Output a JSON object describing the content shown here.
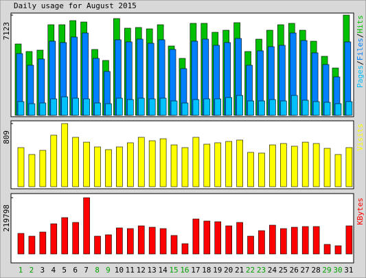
{
  "title": "Daily usage for August 2015",
  "legend_separator": "/",
  "chart_data": [
    {
      "type": "bar",
      "series": [
        {
          "name": "Hits",
          "color": "#00c000",
          "values": [
            5074,
            4537,
            4635,
            6440,
            6440,
            6733,
            6635,
            4684,
            3903,
            6879,
            6196,
            6245,
            6147,
            6440,
            4928,
            4049,
            6538,
            6538,
            5903,
            6050,
            6586,
            4537,
            5415,
            6050,
            6440,
            6538,
            6050,
            5269,
            4196,
            3366,
            7123
          ]
        },
        {
          "name": "Files",
          "color": "#0080ff",
          "values": [
            4391,
            3562,
            4001,
            5269,
            5172,
            5562,
            5854,
            4049,
            3122,
            5367,
            5220,
            5415,
            5123,
            5367,
            4684,
            3318,
            5269,
            5415,
            4977,
            5172,
            5464,
            3562,
            4586,
            4879,
            4977,
            5854,
            5318,
            4440,
            3610,
            2732,
            5220
          ]
        },
        {
          "name": "Pages",
          "color": "#00c0ff",
          "values": [
            976,
            829,
            878,
            1171,
            1317,
            1220,
            1171,
            878,
            829,
            1220,
            1122,
            1220,
            1171,
            1220,
            1025,
            878,
            1122,
            1171,
            1171,
            1268,
            1415,
            1025,
            1025,
            1122,
            1025,
            1415,
            1073,
            976,
            927,
            829,
            976
          ]
        }
      ],
      "ylim": [
        0,
        7123
      ],
      "yticks": [
        7123
      ]
    },
    {
      "type": "bar",
      "series": [
        {
          "name": "Visits",
          "color": "#ffff00",
          "values": [
            501,
            413,
            466,
            660,
            809,
            633,
            571,
            510,
            475,
            510,
            563,
            633,
            589,
            615,
            536,
            501,
            633,
            545,
            563,
            580,
            598,
            440,
            431,
            536,
            554,
            519,
            571,
            554,
            492,
            413,
            501
          ]
        }
      ],
      "ylim": [
        0,
        809
      ],
      "yticks": [
        809
      ]
    },
    {
      "type": "bar",
      "series": [
        {
          "name": "KBytes",
          "color": "#ff0000",
          "values": [
            80415,
            69691,
            85775,
            117941,
            142066,
            123302,
            219798,
            69691,
            75054,
            101858,
            99177,
            109899,
            104538,
            99177,
            72373,
            40207,
            136704,
            128663,
            125982,
            109899,
            123302,
            69691,
            91136,
            112580,
            99177,
            104538,
            107219,
            107219,
            37527,
            32166,
            109899
          ]
        }
      ],
      "categories": [
        "1",
        "2",
        "3",
        "4",
        "5",
        "6",
        "7",
        "8",
        "9",
        "10",
        "11",
        "12",
        "13",
        "14",
        "15",
        "16",
        "17",
        "18",
        "19",
        "20",
        "21",
        "22",
        "23",
        "24",
        "25",
        "26",
        "27",
        "28",
        "29",
        "30",
        "31"
      ],
      "category_colors": [
        "#00a000",
        "#00a000",
        "#000000",
        "#000000",
        "#000000",
        "#000000",
        "#000000",
        "#00a000",
        "#00a000",
        "#000000",
        "#000000",
        "#000000",
        "#000000",
        "#000000",
        "#00a000",
        "#00a000",
        "#000000",
        "#000000",
        "#000000",
        "#000000",
        "#000000",
        "#00a000",
        "#00a000",
        "#000000",
        "#000000",
        "#000000",
        "#000000",
        "#000000",
        "#00a000",
        "#00a000",
        "#000000"
      ],
      "ylim": [
        0,
        219798
      ],
      "yticks": [
        219798
      ]
    }
  ]
}
